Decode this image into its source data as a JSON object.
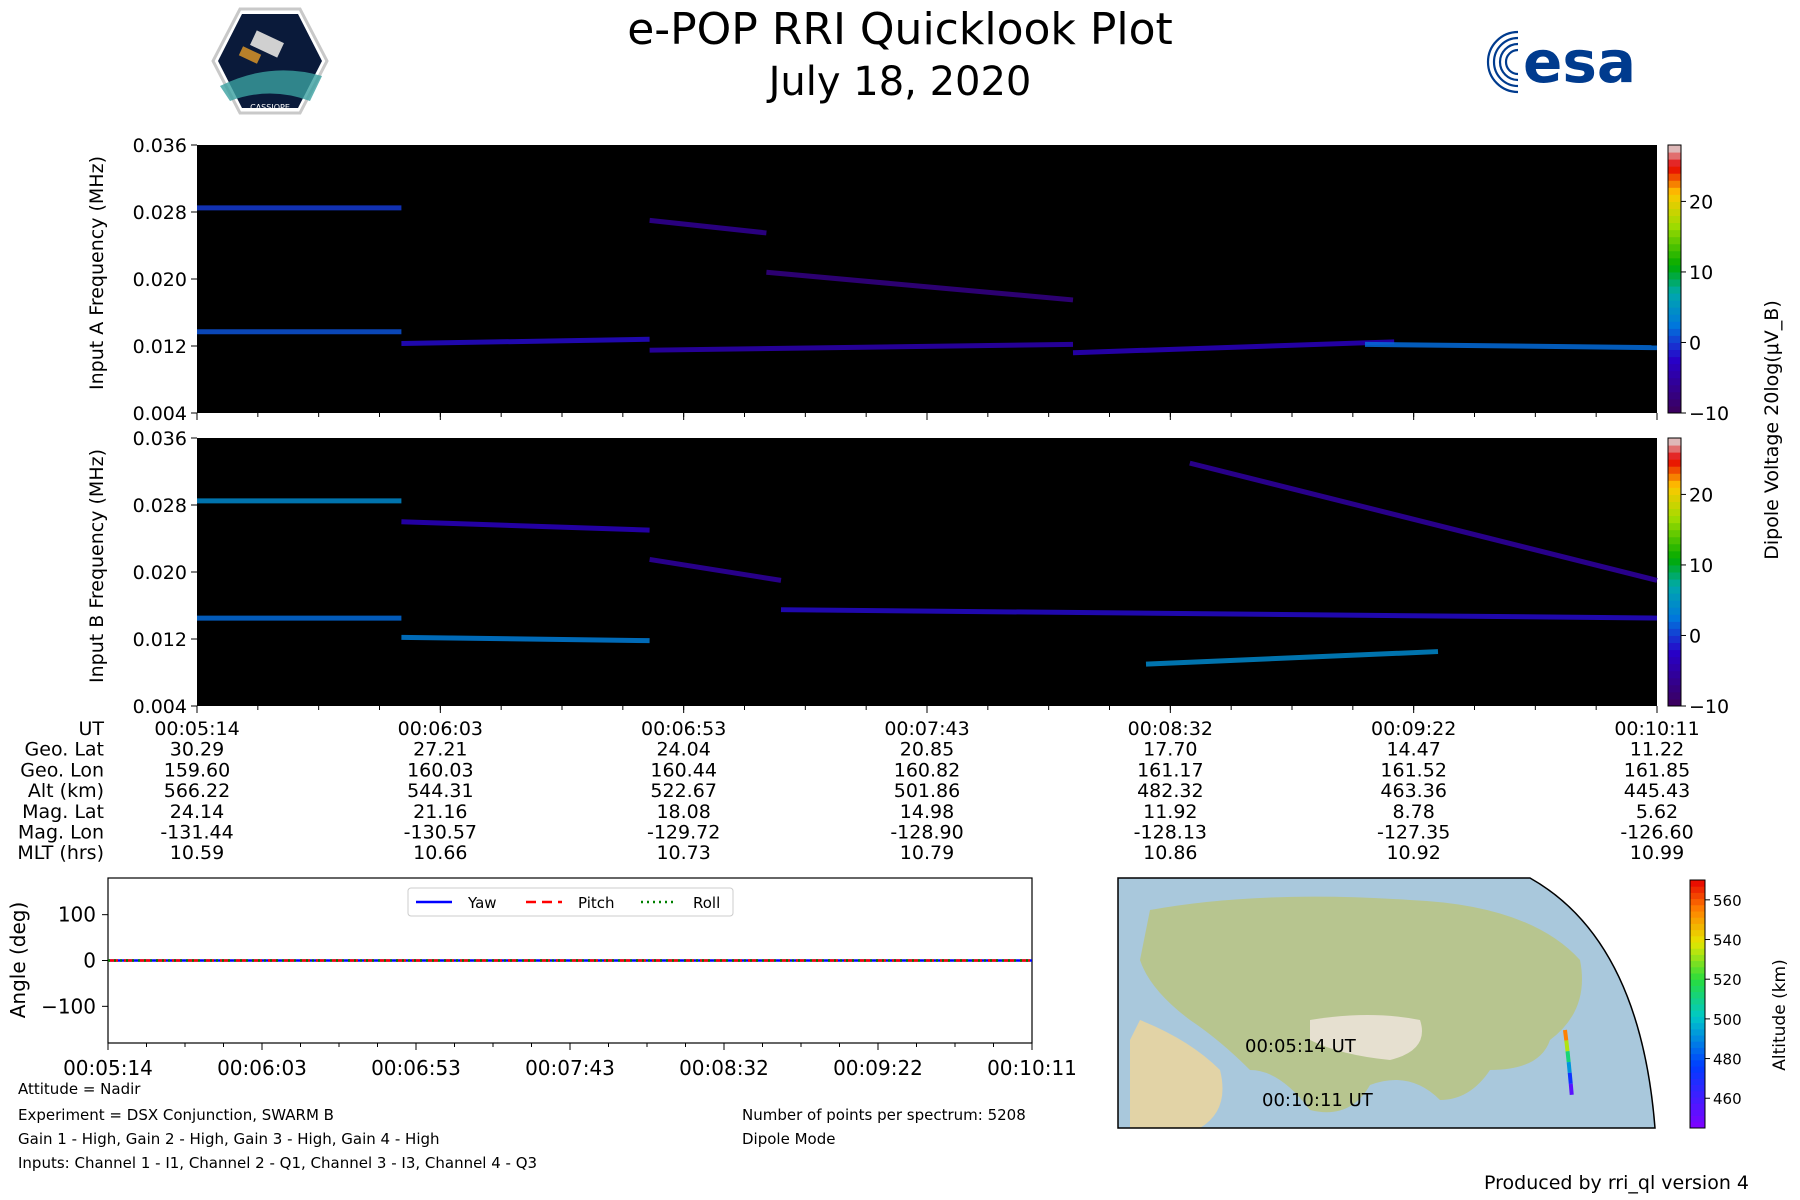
{
  "header": {
    "title": "e-POP RRI Quicklook Plot",
    "date": "July 18, 2020",
    "logo_left_text": "CASSIOPE",
    "logo_right_text": "esa"
  },
  "colors": {
    "spectrogram_bg": "#000000",
    "esa_blue": "#003b8e",
    "yaw": "#0000ff",
    "pitch": "#ff0000",
    "roll": "#008000"
  },
  "spectrograms": {
    "panel_a": {
      "ylabel": "Input A Frequency (MHz)"
    },
    "panel_b": {
      "ylabel": "Input B Frequency (MHz)"
    },
    "colorbar_label": "Dipole Voltage 20log(μV_B)"
  },
  "ephemeris": {
    "row_labels": [
      "UT",
      "Geo. Lat",
      "Geo. Lon",
      "Alt (km)",
      "Mag. Lat",
      "Mag. Lon",
      "MLT (hrs)"
    ],
    "columns": [
      [
        "00:05:14",
        "30.29",
        "159.60",
        "566.22",
        "24.14",
        "-131.44",
        "10.59"
      ],
      [
        "00:06:03",
        "27.21",
        "160.03",
        "544.31",
        "21.16",
        "-130.57",
        "10.66"
      ],
      [
        "00:06:53",
        "24.04",
        "160.44",
        "522.67",
        "18.08",
        "-129.72",
        "10.73"
      ],
      [
        "00:07:43",
        "20.85",
        "160.82",
        "501.86",
        "14.98",
        "-128.90",
        "10.79"
      ],
      [
        "00:08:32",
        "17.70",
        "161.17",
        "482.32",
        "11.92",
        "-128.13",
        "10.86"
      ],
      [
        "00:09:22",
        "14.47",
        "161.52",
        "463.36",
        "8.78",
        "-127.35",
        "10.92"
      ],
      [
        "00:10:11",
        "11.22",
        "161.85",
        "445.43",
        "5.62",
        "-126.60",
        "10.99"
      ]
    ]
  },
  "map": {
    "start_label": "00:05:14 UT",
    "end_label": "00:10:11 UT",
    "colorbar_label": "Altitude (km)"
  },
  "footer": {
    "attitude": "Attitude = Nadir",
    "experiment": "Experiment = DSX Conjunction, SWARM B",
    "gains": "Gain 1 - High, Gain 2 - High, Gain 3 - High, Gain 4 - High",
    "inputs": "Inputs: Channel 1 - I1, Channel 2 - Q1, Channel 3 - I3, Channel 4 - Q3",
    "points": "Number of points per spectrum: 5208",
    "mode": "Dipole Mode",
    "produced_by": "Produced by rri_ql version 4"
  },
  "chart_data": [
    {
      "type": "heatmap",
      "name": "Input A spectrogram",
      "ylabel": "Input A Frequency (MHz)",
      "yticks": [
        "0.004",
        "0.012",
        "0.020",
        "0.028",
        "0.036"
      ],
      "ylim": [
        0.004,
        0.036
      ],
      "xlim": [
        "00:05:14",
        "00:10:11"
      ],
      "clim": [
        -10,
        28
      ],
      "cticks": [
        "−10",
        "0",
        "10",
        "20"
      ],
      "features": [
        {
          "t": [
            0,
            0.14
          ],
          "f": [
            0.0285,
            0.0285
          ],
          "level": 0
        },
        {
          "t": [
            0,
            0.14
          ],
          "f": [
            0.0137,
            0.0137
          ],
          "level": 1
        },
        {
          "t": [
            0.14,
            0.31
          ],
          "f": [
            0.0123,
            0.0128
          ],
          "level": -2
        },
        {
          "t": [
            0.31,
            0.39
          ],
          "f": [
            0.027,
            0.0255
          ],
          "level": -6
        },
        {
          "t": [
            0.39,
            0.6
          ],
          "f": [
            0.0208,
            0.0175
          ],
          "level": -7
        },
        {
          "t": [
            0.31,
            0.6
          ],
          "f": [
            0.0115,
            0.0122
          ],
          "level": -4
        },
        {
          "t": [
            0.6,
            0.82
          ],
          "f": [
            0.0112,
            0.0125
          ],
          "level": -3
        },
        {
          "t": [
            0.8,
            1.0
          ],
          "f": [
            0.0122,
            0.0118
          ],
          "level": 2
        }
      ]
    },
    {
      "type": "heatmap",
      "name": "Input B spectrogram",
      "ylabel": "Input B Frequency (MHz)",
      "yticks": [
        "0.004",
        "0.012",
        "0.020",
        "0.028",
        "0.036"
      ],
      "ylim": [
        0.004,
        0.036
      ],
      "xlim": [
        "00:05:14",
        "00:10:11"
      ],
      "clim": [
        -10,
        28
      ],
      "cticks": [
        "−10",
        "0",
        "10",
        "20"
      ],
      "features": [
        {
          "t": [
            0,
            0.14
          ],
          "f": [
            0.0285,
            0.0285
          ],
          "level": 4
        },
        {
          "t": [
            0,
            0.14
          ],
          "f": [
            0.0145,
            0.0145
          ],
          "level": 2
        },
        {
          "t": [
            0.14,
            0.31
          ],
          "f": [
            0.0122,
            0.0118
          ],
          "level": 3
        },
        {
          "t": [
            0.14,
            0.31
          ],
          "f": [
            0.026,
            0.025
          ],
          "level": -3
        },
        {
          "t": [
            0.31,
            0.4
          ],
          "f": [
            0.0215,
            0.019
          ],
          "level": -5
        },
        {
          "t": [
            0.4,
            1.0
          ],
          "f": [
            0.0155,
            0.0145
          ],
          "level": -2
        },
        {
          "t": [
            0.65,
            0.85
          ],
          "f": [
            0.009,
            0.0105
          ],
          "level": 4
        },
        {
          "t": [
            0.68,
            1.0
          ],
          "f": [
            0.033,
            0.019
          ],
          "level": -5
        }
      ]
    },
    {
      "type": "line",
      "name": "Attitude",
      "ylabel": "Angle (deg)",
      "ylim": [
        -180,
        180
      ],
      "yticks": [
        "100",
        "0",
        "−100"
      ],
      "categories": [
        "00:05:14",
        "00:06:03",
        "00:06:53",
        "00:07:43",
        "00:08:32",
        "00:09:22",
        "00:10:11"
      ],
      "series": [
        {
          "name": "Yaw",
          "values": [
            0,
            0,
            0,
            0,
            0,
            0,
            0
          ]
        },
        {
          "name": "Pitch",
          "values": [
            0,
            0,
            0,
            0,
            0,
            0,
            0
          ]
        },
        {
          "name": "Roll",
          "values": [
            0,
            0,
            0,
            0,
            0,
            0,
            0
          ]
        }
      ],
      "legend": "top-center"
    },
    {
      "type": "scatter",
      "name": "Satellite ground track",
      "x": [
        159.6,
        160.03,
        160.44,
        160.82,
        161.17,
        161.52,
        161.85
      ],
      "y": [
        30.29,
        27.21,
        24.04,
        20.85,
        17.7,
        14.47,
        11.22
      ],
      "color_values": [
        566.22,
        544.31,
        522.67,
        501.86,
        482.32,
        463.36,
        445.43
      ],
      "colorbar_label": "Altitude (km)",
      "cticks": [
        "460",
        "480",
        "500",
        "520",
        "540",
        "560"
      ],
      "clim": [
        445,
        570
      ]
    }
  ]
}
